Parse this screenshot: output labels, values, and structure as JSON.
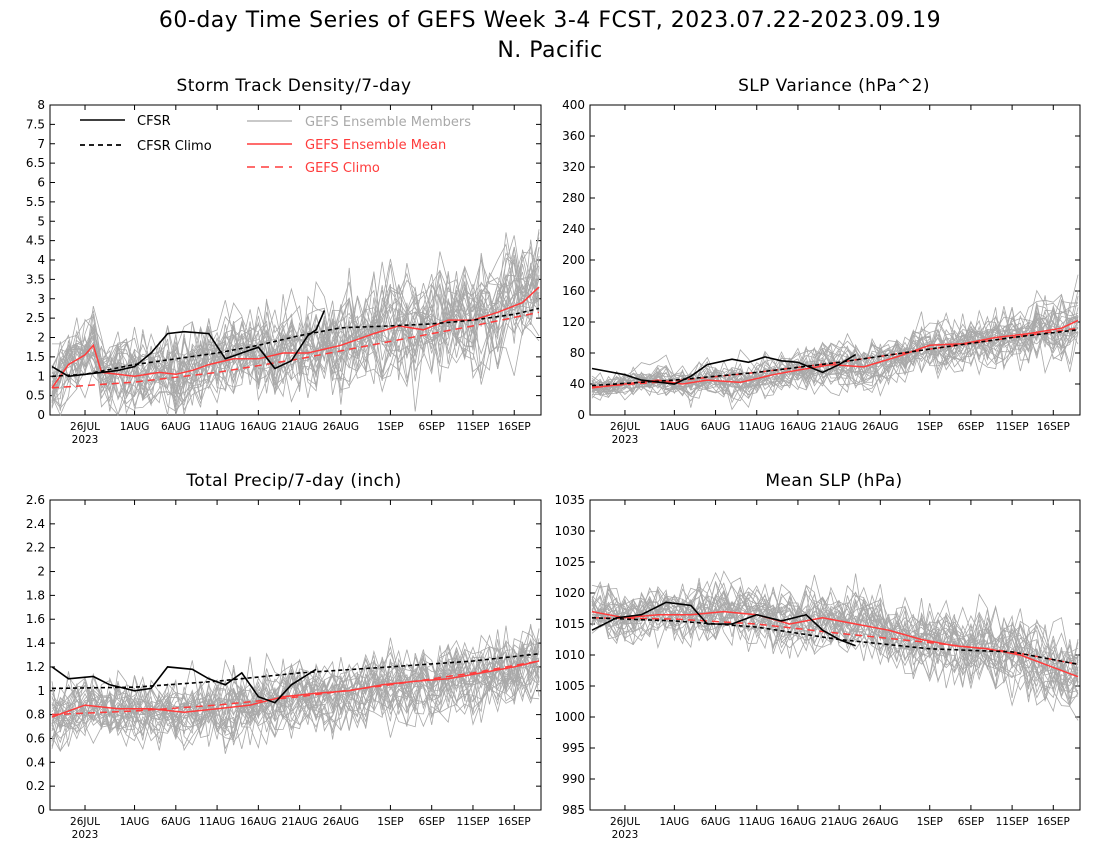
{
  "figure": {
    "title_line1": "60-day Time Series of GEFS Week 3-4 FCST, 2023.07.22-2023.09.19",
    "title_line2": "N. Pacific"
  },
  "legend": {
    "cfsr": "CFSR",
    "cfsr_climo": "CFSR Climo",
    "gefs_members": "GEFS Ensemble Members",
    "gefs_mean": "GEFS Ensemble Mean",
    "gefs_climo": "GEFS Climo"
  },
  "colors": {
    "cfsr": "#000000",
    "members": "#a9a9a9",
    "gefs": "#ff3b3b",
    "members_legend_text": "#a9a9a9"
  },
  "x_axis": {
    "start_date": "2023-07-22",
    "end_date": "2023-09-19",
    "year_label": "2023",
    "ticks": [
      "26JUL",
      "1AUG",
      "6AUG",
      "11AUG",
      "16AUG",
      "21AUG",
      "26AUG",
      "1SEP",
      "6SEP",
      "11SEP",
      "16SEP"
    ],
    "tick_dates": [
      "2023-07-26",
      "2023-08-01",
      "2023-08-06",
      "2023-08-11",
      "2023-08-16",
      "2023-08-21",
      "2023-08-26",
      "2023-09-01",
      "2023-09-06",
      "2023-09-11",
      "2023-09-16"
    ]
  },
  "chart_data": [
    {
      "type": "line",
      "title": "Storm Track Density/7-day",
      "ylim": [
        0,
        8
      ],
      "yticks": [
        "0",
        "0.5",
        "1",
        "1.5",
        "2",
        "2.5",
        "3",
        "3.5",
        "4",
        "4.5",
        "5",
        "5.5",
        "6",
        "6.5",
        "7",
        "7.5",
        "8"
      ],
      "legend_shown": true,
      "legend_placement": "top-left",
      "member_count": 30,
      "member_spread_start": 0.6,
      "member_spread_end": 1.0,
      "series": [
        {
          "name": "CFSR",
          "style": "solid-black",
          "x": [
            "2023-07-22",
            "2023-07-24",
            "2023-07-26",
            "2023-07-28",
            "2023-07-30",
            "2023-08-01",
            "2023-08-03",
            "2023-08-05",
            "2023-08-07",
            "2023-08-10",
            "2023-08-12",
            "2023-08-14",
            "2023-08-16",
            "2023-08-18",
            "2023-08-20",
            "2023-08-22",
            "2023-08-23",
            "2023-08-24"
          ],
          "values": [
            1.25,
            1.0,
            1.05,
            1.1,
            1.15,
            1.25,
            1.6,
            2.1,
            2.15,
            2.1,
            1.45,
            1.6,
            1.75,
            1.2,
            1.4,
            2.05,
            2.2,
            2.7
          ]
        },
        {
          "name": "CFSR Climo",
          "style": "dashed-black",
          "x": [
            "2023-07-22",
            "2023-07-26",
            "2023-08-01",
            "2023-08-06",
            "2023-08-11",
            "2023-08-16",
            "2023-08-21",
            "2023-08-26",
            "2023-09-01",
            "2023-09-06",
            "2023-09-11",
            "2023-09-16",
            "2023-09-19"
          ],
          "values": [
            1.0,
            1.05,
            1.3,
            1.45,
            1.6,
            1.8,
            2.05,
            2.25,
            2.3,
            2.35,
            2.45,
            2.6,
            2.75
          ]
        },
        {
          "name": "GEFS Ensemble Mean",
          "style": "solid-red",
          "x": [
            "2023-07-22",
            "2023-07-24",
            "2023-07-26",
            "2023-07-27",
            "2023-07-28",
            "2023-07-30",
            "2023-08-01",
            "2023-08-04",
            "2023-08-06",
            "2023-08-08",
            "2023-08-10",
            "2023-08-13",
            "2023-08-16",
            "2023-08-19",
            "2023-08-22",
            "2023-08-26",
            "2023-08-30",
            "2023-09-02",
            "2023-09-05",
            "2023-09-08",
            "2023-09-11",
            "2023-09-14",
            "2023-09-17",
            "2023-09-19"
          ],
          "values": [
            0.7,
            1.3,
            1.55,
            1.8,
            1.1,
            1.05,
            1.0,
            1.1,
            1.05,
            1.15,
            1.3,
            1.45,
            1.45,
            1.6,
            1.6,
            1.8,
            2.1,
            2.3,
            2.2,
            2.45,
            2.45,
            2.65,
            2.9,
            3.3
          ]
        },
        {
          "name": "GEFS Climo",
          "style": "dashed-red",
          "x": [
            "2023-07-22",
            "2023-08-01",
            "2023-08-11",
            "2023-08-21",
            "2023-09-01",
            "2023-09-11",
            "2023-09-19"
          ],
          "values": [
            0.7,
            0.85,
            1.1,
            1.45,
            1.9,
            2.3,
            2.65
          ]
        }
      ]
    },
    {
      "type": "line",
      "title": "SLP Variance (hPa^2)",
      "ylim": [
        0,
        400
      ],
      "yticks": [
        "0",
        "40",
        "80",
        "120",
        "160",
        "200",
        "240",
        "280",
        "320",
        "360",
        "400"
      ],
      "legend_shown": false,
      "member_count": 30,
      "member_spread_start": 10,
      "member_spread_end": 28,
      "series": [
        {
          "name": "CFSR",
          "style": "solid-black",
          "x": [
            "2023-07-22",
            "2023-07-26",
            "2023-07-28",
            "2023-08-01",
            "2023-08-03",
            "2023-08-05",
            "2023-08-08",
            "2023-08-10",
            "2023-08-12",
            "2023-08-14",
            "2023-08-16",
            "2023-08-19",
            "2023-08-21",
            "2023-08-23"
          ],
          "values": [
            60,
            52,
            45,
            40,
            50,
            65,
            72,
            68,
            75,
            70,
            68,
            55,
            65,
            78
          ]
        },
        {
          "name": "CFSR Climo",
          "style": "dashed-black",
          "x": [
            "2023-07-22",
            "2023-08-01",
            "2023-08-11",
            "2023-08-21",
            "2023-09-01",
            "2023-09-11",
            "2023-09-19"
          ],
          "values": [
            38,
            45,
            55,
            68,
            85,
            100,
            110
          ]
        },
        {
          "name": "GEFS Ensemble Mean",
          "style": "solid-red",
          "x": [
            "2023-07-22",
            "2023-07-26",
            "2023-07-30",
            "2023-08-02",
            "2023-08-05",
            "2023-08-09",
            "2023-08-13",
            "2023-08-16",
            "2023-08-20",
            "2023-08-24",
            "2023-08-28",
            "2023-09-01",
            "2023-09-05",
            "2023-09-09",
            "2023-09-13",
            "2023-09-17",
            "2023-09-19"
          ],
          "values": [
            35,
            40,
            45,
            40,
            45,
            42,
            52,
            58,
            65,
            62,
            75,
            90,
            92,
            100,
            105,
            112,
            122
          ]
        },
        {
          "name": "GEFS Climo",
          "style": "dashed-red",
          "x": [
            "2023-07-22",
            "2023-08-01",
            "2023-08-11",
            "2023-08-21",
            "2023-09-01",
            "2023-09-11",
            "2023-09-19"
          ],
          "values": [
            36,
            44,
            55,
            68,
            85,
            100,
            112
          ]
        }
      ]
    },
    {
      "type": "line",
      "title": "Total Precip/7-day (inch)",
      "ylim": [
        0,
        2.6
      ],
      "yticks": [
        "0",
        "0.2",
        "0.4",
        "0.6",
        "0.8",
        "1",
        "1.2",
        "1.4",
        "1.6",
        "1.8",
        "2",
        "2.2",
        "2.4",
        "2.6"
      ],
      "legend_shown": false,
      "member_count": 30,
      "member_spread_start": 0.17,
      "member_spread_end": 0.22,
      "series": [
        {
          "name": "CFSR",
          "style": "solid-black",
          "x": [
            "2023-07-22",
            "2023-07-24",
            "2023-07-27",
            "2023-07-29",
            "2023-08-01",
            "2023-08-03",
            "2023-08-05",
            "2023-08-08",
            "2023-08-10",
            "2023-08-12",
            "2023-08-14",
            "2023-08-16",
            "2023-08-18",
            "2023-08-20",
            "2023-08-23"
          ],
          "values": [
            1.2,
            1.1,
            1.12,
            1.05,
            1.0,
            1.02,
            1.2,
            1.18,
            1.1,
            1.05,
            1.15,
            0.95,
            0.9,
            1.05,
            1.18
          ]
        },
        {
          "name": "CFSR Climo",
          "style": "dashed-black",
          "x": [
            "2023-07-22",
            "2023-08-01",
            "2023-08-11",
            "2023-08-21",
            "2023-09-01",
            "2023-09-11",
            "2023-09-19"
          ],
          "values": [
            1.02,
            1.03,
            1.08,
            1.15,
            1.2,
            1.25,
            1.31
          ]
        },
        {
          "name": "GEFS Ensemble Mean",
          "style": "solid-red",
          "x": [
            "2023-07-22",
            "2023-07-26",
            "2023-07-30",
            "2023-08-03",
            "2023-08-07",
            "2023-08-11",
            "2023-08-15",
            "2023-08-19",
            "2023-08-23",
            "2023-08-27",
            "2023-08-31",
            "2023-09-04",
            "2023-09-08",
            "2023-09-12",
            "2023-09-16",
            "2023-09-19"
          ],
          "values": [
            0.78,
            0.88,
            0.85,
            0.85,
            0.82,
            0.85,
            0.88,
            0.95,
            0.98,
            1.0,
            1.05,
            1.08,
            1.1,
            1.15,
            1.2,
            1.25
          ]
        },
        {
          "name": "GEFS Climo",
          "style": "dashed-red",
          "x": [
            "2023-07-22",
            "2023-08-01",
            "2023-08-11",
            "2023-08-21",
            "2023-09-01",
            "2023-09-11",
            "2023-09-19"
          ],
          "values": [
            0.8,
            0.83,
            0.88,
            0.95,
            1.05,
            1.15,
            1.25
          ]
        }
      ]
    },
    {
      "type": "line",
      "title": "Mean SLP (hPa)",
      "ylim": [
        985,
        1035
      ],
      "yticks": [
        "985",
        "990",
        "995",
        "1000",
        "1005",
        "1010",
        "1015",
        "1020",
        "1025",
        "1030",
        "1035"
      ],
      "legend_shown": false,
      "member_count": 30,
      "member_spread_start": 2.5,
      "member_spread_end": 4.5,
      "series": [
        {
          "name": "CFSR",
          "style": "solid-black",
          "x": [
            "2023-07-22",
            "2023-07-25",
            "2023-07-28",
            "2023-07-31",
            "2023-08-03",
            "2023-08-05",
            "2023-08-08",
            "2023-08-11",
            "2023-08-14",
            "2023-08-17",
            "2023-08-19",
            "2023-08-21",
            "2023-08-23"
          ],
          "values": [
            1014,
            1016,
            1016.5,
            1018.5,
            1018,
            1015,
            1015,
            1016.5,
            1015.5,
            1016.5,
            1014,
            1012.5,
            1011.5
          ]
        },
        {
          "name": "CFSR Climo",
          "style": "dashed-black",
          "x": [
            "2023-07-22",
            "2023-08-01",
            "2023-08-11",
            "2023-08-21",
            "2023-09-01",
            "2023-09-11",
            "2023-09-19"
          ],
          "values": [
            1016,
            1015.5,
            1014.5,
            1012.5,
            1011,
            1010.5,
            1008.5
          ]
        },
        {
          "name": "GEFS Ensemble Mean",
          "style": "solid-red",
          "x": [
            "2023-07-22",
            "2023-07-26",
            "2023-07-30",
            "2023-08-03",
            "2023-08-07",
            "2023-08-11",
            "2023-08-15",
            "2023-08-19",
            "2023-08-23",
            "2023-08-27",
            "2023-08-31",
            "2023-09-04",
            "2023-09-08",
            "2023-09-12",
            "2023-09-16",
            "2023-09-19"
          ],
          "values": [
            1017,
            1016,
            1016.5,
            1016.5,
            1017,
            1016.5,
            1015,
            1016,
            1015,
            1014,
            1012.5,
            1011.5,
            1011,
            1010,
            1008,
            1006.5
          ]
        },
        {
          "name": "GEFS Climo",
          "style": "dashed-red",
          "x": [
            "2023-07-22",
            "2023-08-01",
            "2023-08-11",
            "2023-08-21",
            "2023-09-01",
            "2023-09-11",
            "2023-09-19"
          ],
          "values": [
            1016,
            1015.8,
            1015,
            1013.5,
            1012,
            1010.5,
            1008.5
          ]
        }
      ]
    }
  ]
}
